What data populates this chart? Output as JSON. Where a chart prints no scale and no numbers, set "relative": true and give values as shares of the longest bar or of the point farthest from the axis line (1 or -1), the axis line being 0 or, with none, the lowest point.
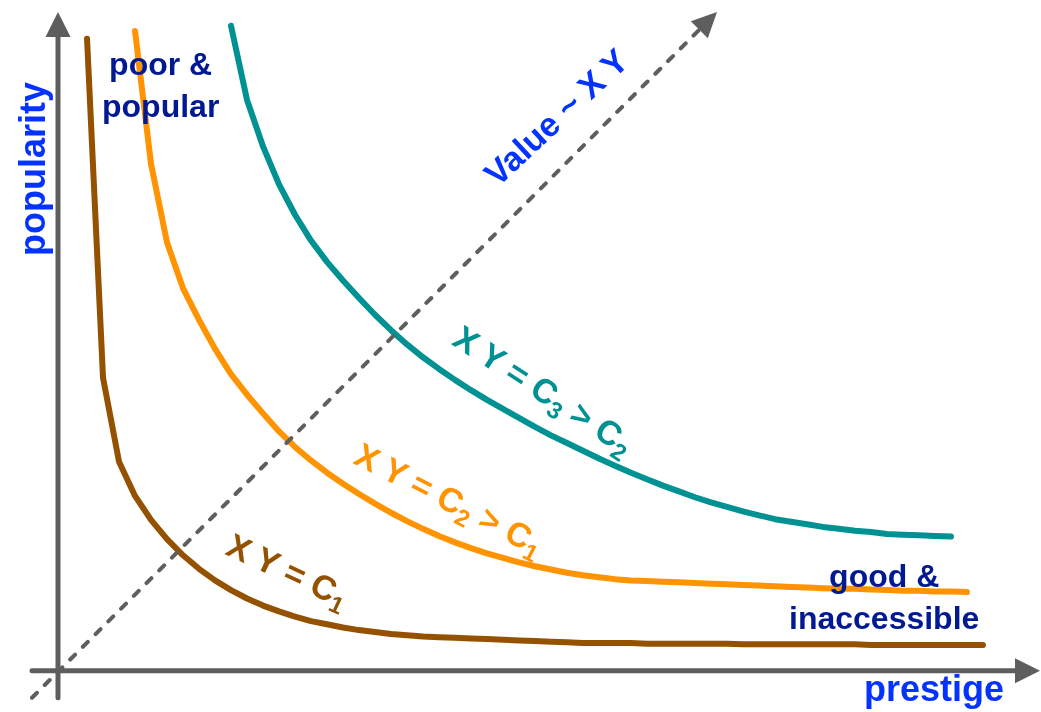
{
  "chart_data": {
    "type": "line",
    "relative": true,
    "line_style": "solid",
    "xlabel": "prestige",
    "ylabel": "popularity",
    "annotations": [
      "poor &\npopular",
      "good &\ninaccessible",
      "Value ~ X Y"
    ],
    "categories": [
      null,
      null,
      null,
      null,
      null,
      null,
      null,
      null,
      null,
      null,
      null,
      null,
      null,
      null,
      null,
      null,
      null,
      null,
      null,
      null,
      null,
      null,
      null,
      null,
      null,
      null,
      null,
      null,
      null,
      null,
      null,
      null,
      null,
      null,
      null,
      null,
      null,
      null,
      null,
      null,
      null,
      null,
      null,
      null,
      null,
      null,
      null,
      null,
      null,
      null,
      null,
      null,
      null,
      null,
      null,
      null,
      null,
      null,
      null,
      null
    ],
    "series": [
      {
        "name": "X Y = C$_{1}$",
        "color": "#945200",
        "values": [
          null,
          null,
          null,
          0.98,
          0.454,
          0.324,
          0.271,
          0.234,
          0.204,
          0.179,
          0.158,
          0.14,
          0.125,
          0.112,
          0.101,
          0.092,
          0.084,
          0.077,
          0.072,
          0.067,
          0.063,
          0.06,
          0.057,
          0.055,
          0.053,
          0.052,
          0.051,
          0.05,
          0.049,
          0.048,
          0.047,
          0.046,
          0.045,
          0.044,
          0.043,
          0.043,
          0.043,
          0.043,
          0.042,
          0.042,
          0.042,
          0.042,
          0.042,
          0.042,
          0.041,
          0.041,
          0.041,
          0.041,
          0.041,
          0.041,
          0.041,
          0.041,
          0.04,
          0.04,
          0.04,
          0.04,
          0.04,
          0.04,
          0.04,
          0.04
        ]
      },
      {
        "name": "X Y = C$_{2}$ > C$_{1}$",
        "color": "#ff9300",
        "values": [
          null,
          null,
          null,
          null,
          null,
          null,
          0.992,
          0.786,
          0.664,
          0.593,
          0.544,
          0.499,
          0.46,
          0.428,
          0.399,
          0.371,
          0.347,
          0.326,
          0.307,
          0.29,
          0.274,
          0.259,
          0.245,
          0.232,
          0.22,
          0.209,
          0.199,
          0.19,
          0.182,
          0.175,
          0.168,
          0.162,
          0.157,
          0.152,
          0.148,
          0.145,
          0.142,
          0.14,
          0.139,
          0.138,
          0.137,
          0.136,
          0.135,
          0.134,
          0.133,
          0.132,
          0.131,
          0.13,
          0.129,
          0.128,
          0.127,
          0.127,
          0.126,
          0.125,
          0.124,
          0.124,
          0.123,
          0.123,
          0.122,
          null
        ]
      },
      {
        "name": "X Y = C$_{3}$ > C$_{2}$",
        "color": "#009193",
        "values": [
          null,
          null,
          null,
          null,
          null,
          null,
          null,
          null,
          null,
          null,
          null,
          null,
          1.0,
          0.885,
          0.813,
          0.754,
          0.707,
          0.667,
          0.634,
          0.605,
          0.578,
          0.552,
          0.528,
          0.506,
          0.486,
          0.468,
          0.451,
          0.435,
          0.42,
          0.406,
          0.392,
          0.378,
          0.365,
          0.353,
          0.341,
          0.329,
          0.318,
          0.307,
          0.297,
          0.287,
          0.278,
          0.269,
          0.261,
          0.254,
          0.247,
          0.241,
          0.235,
          0.231,
          0.227,
          0.223,
          0.22,
          0.217,
          0.215,
          0.212,
          0.211,
          0.21,
          0.209,
          0.208,
          null,
          null
        ]
      }
    ]
  }
}
